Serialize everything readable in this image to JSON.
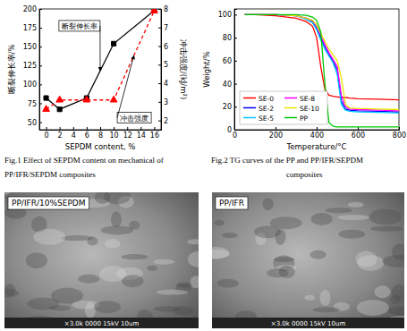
{
  "chart_data": [
    {
      "type": "line",
      "x_label": "SEPDM content, %",
      "y_label": "断裂伸长率/%",
      "y2_label": "冲击强度/(kJ/m²)",
      "x": [
        0,
        2,
        6,
        10,
        16
      ],
      "xlim": [
        -1,
        17
      ],
      "xticks": [
        0,
        2,
        4,
        6,
        8,
        10,
        12,
        14,
        16
      ],
      "ylim": [
        40,
        200
      ],
      "yticks": [
        50,
        75,
        100,
        125,
        150,
        175,
        200
      ],
      "y2lim": [
        1.5,
        8
      ],
      "y2ticks": [
        2,
        3,
        4,
        5,
        6,
        7,
        8
      ],
      "series": [
        {
          "name": "断裂伸长率",
          "color": "#000000",
          "values": [
            82,
            67,
            82,
            154,
            198
          ],
          "marker": "square",
          "line_style": "solid"
        },
        {
          "name": "冲击强度",
          "color": "#ff0000",
          "values": [
            2.6,
            3.1,
            3.1,
            3.1,
            7.9
          ],
          "marker": "triangle",
          "line_style": "dashed",
          "axis": "y2"
        }
      ]
    },
    {
      "type": "line",
      "x_label": "Temperature/°C",
      "y_label": "Weight/%",
      "x": [
        50,
        100,
        200,
        300,
        350,
        380,
        400,
        420,
        440,
        460,
        480,
        500,
        520,
        540,
        560,
        600,
        700,
        800
      ],
      "xlim": [
        0,
        800
      ],
      "xticks": [
        0,
        200,
        400,
        600,
        800
      ],
      "ylim": [
        0,
        105
      ],
      "yticks": [
        0,
        20,
        40,
        60,
        80,
        100
      ],
      "legend": "lower left",
      "series": [
        {
          "name": "SE-0",
          "color": "#ff0000",
          "values": [
            100,
            100,
            99,
            97,
            94,
            90,
            80,
            55,
            35,
            30,
            29,
            28.5,
            28,
            28,
            27.5,
            27,
            26.5,
            26
          ]
        },
        {
          "name": "SE-2",
          "color": "#0000ff",
          "values": [
            100,
            100,
            100,
            99,
            97,
            94,
            88,
            80,
            72,
            65,
            60,
            52,
            25,
            18,
            17,
            16.5,
            16,
            15.5
          ]
        },
        {
          "name": "SE-5",
          "color": "#00c8ff",
          "values": [
            100,
            100,
            100,
            99,
            96,
            93,
            87,
            78,
            70,
            64,
            58,
            48,
            22,
            17,
            16,
            15.5,
            15,
            14.5
          ]
        },
        {
          "name": "SE-8",
          "color": "#ff00ff",
          "values": [
            100,
            100,
            100,
            99,
            97,
            95,
            90,
            82,
            74,
            67,
            61,
            55,
            30,
            20,
            18,
            17.5,
            17,
            16.5
          ]
        },
        {
          "name": "SE-10",
          "color": "#e8e800",
          "values": [
            100,
            100,
            100,
            99,
            97,
            95,
            91,
            84,
            77,
            70,
            65,
            60,
            45,
            22,
            19,
            18.5,
            18,
            17.5
          ]
        },
        {
          "name": "PP",
          "color": "#00c800",
          "values": [
            100,
            100,
            100,
            100,
            99.5,
            98,
            95,
            85,
            40,
            6,
            3,
            2.5,
            2.5,
            2.5,
            2.5,
            2.5,
            2.5,
            2.5
          ]
        }
      ]
    }
  ],
  "captions": [
    [
      "Fig.1 Effect of SEPDM content on mechanical of",
      "PP/IFR/SEPDM composites"
    ],
    [
      "Fig.2 TG curves of the PP and PP/IFR/SEPDM",
      "composites"
    ]
  ],
  "images": [
    {
      "label": "PP/IFR/10%SEPDM",
      "info": "×3.0k 0000 15kV 10um"
    },
    {
      "label": "PP/IFR",
      "info": "×3.0k 0000 15kV 10um"
    }
  ]
}
